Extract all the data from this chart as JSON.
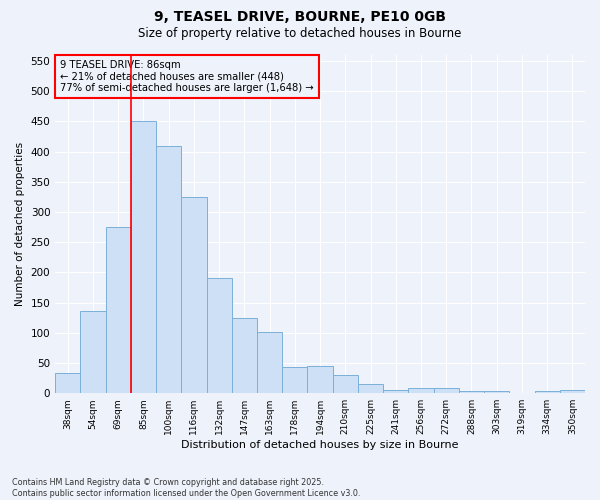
{
  "title_line1": "9, TEASEL DRIVE, BOURNE, PE10 0GB",
  "title_line2": "Size of property relative to detached houses in Bourne",
  "xlabel": "Distribution of detached houses by size in Bourne",
  "ylabel": "Number of detached properties",
  "categories": [
    "38sqm",
    "54sqm",
    "69sqm",
    "85sqm",
    "100sqm",
    "116sqm",
    "132sqm",
    "147sqm",
    "163sqm",
    "178sqm",
    "194sqm",
    "210sqm",
    "225sqm",
    "241sqm",
    "256sqm",
    "272sqm",
    "288sqm",
    "303sqm",
    "319sqm",
    "334sqm",
    "350sqm"
  ],
  "values": [
    34,
    136,
    275,
    450,
    410,
    325,
    190,
    125,
    101,
    44,
    45,
    30,
    16,
    6,
    8,
    8,
    4,
    3,
    0,
    3,
    6
  ],
  "bar_color": "#cde0f5",
  "bar_edge_color": "#7ab0d8",
  "vline_x": 2.5,
  "vline_color": "red",
  "annotation_text": "9 TEASEL DRIVE: 86sqm\n← 21% of detached houses are smaller (448)\n77% of semi-detached houses are larger (1,648) →",
  "annotation_box_color": "red",
  "ylim": [
    0,
    560
  ],
  "yticks": [
    0,
    50,
    100,
    150,
    200,
    250,
    300,
    350,
    400,
    450,
    500,
    550
  ],
  "footer_text": "Contains HM Land Registry data © Crown copyright and database right 2025.\nContains public sector information licensed under the Open Government Licence v3.0.",
  "bg_color": "#eef2fa",
  "grid_color": "#ffffff"
}
